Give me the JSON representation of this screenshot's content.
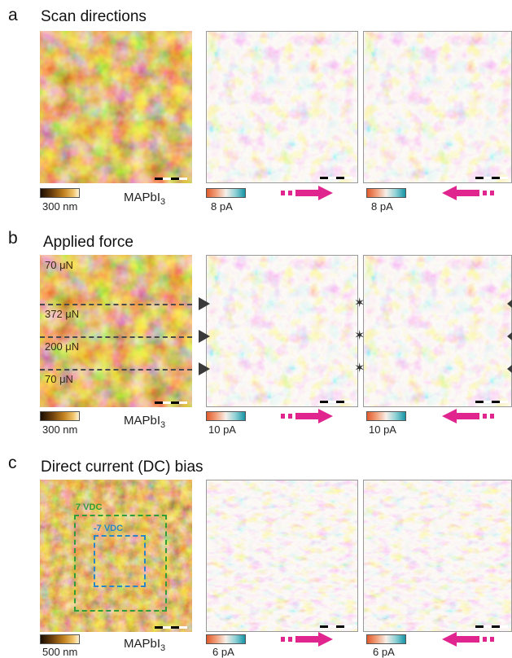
{
  "panels": {
    "a": {
      "letter": "a",
      "title": "Scan directions",
      "topo_scale": "300 nm",
      "material": "MAPbI",
      "material_sub": "3",
      "current_scale_1": "8 pA",
      "current_scale_2": "8 pA"
    },
    "b": {
      "letter": "b",
      "title": "Applied force",
      "force_labels": [
        "70 μN",
        "372 μN",
        "200 μN",
        "70 μN"
      ],
      "topo_scale": "300 nm",
      "material": "MAPbI",
      "material_sub": "3",
      "current_scale_1": "10 pA",
      "current_scale_2": "10 pA"
    },
    "c": {
      "letter": "c",
      "title": "Direct current (DC) bias",
      "bias_outer": "7 VDC",
      "bias_inner": "-7 VDC",
      "topo_scale": "500 nm",
      "material": "MAPbI",
      "material_sub": "3",
      "current_scale_1": "6 pA",
      "current_scale_2": "6 pA"
    }
  },
  "colors": {
    "arrow": "#e0258f",
    "outer_box": "#2f9e3a",
    "inner_box": "#2a86c9"
  }
}
